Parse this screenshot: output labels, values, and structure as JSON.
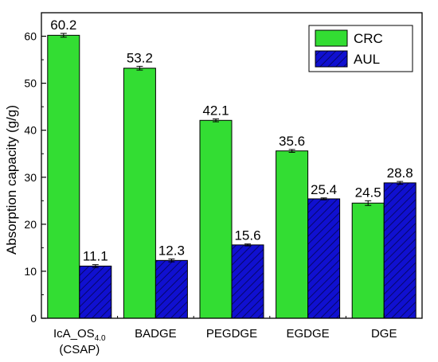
{
  "chart_data": {
    "type": "bar",
    "categories": [
      "IcA_OS4.0 (CSAP)",
      "BADGE",
      "PEGDGE",
      "EGDGE",
      "DGE"
    ],
    "category_labels": [
      {
        "main": "IcA_OS",
        "sub": "4.0",
        "line2": "(CSAP)"
      },
      {
        "main": "BADGE",
        "sub": "",
        "line2": ""
      },
      {
        "main": "PEGDGE",
        "sub": "",
        "line2": ""
      },
      {
        "main": "EGDGE",
        "sub": "",
        "line2": ""
      },
      {
        "main": "DGE",
        "sub": "",
        "line2": ""
      }
    ],
    "series": [
      {
        "name": "CRC",
        "values": [
          60.2,
          53.2,
          42.1,
          35.6,
          24.5
        ],
        "labels": [
          "60.2",
          "53.2",
          "42.1",
          "35.6",
          "24.5"
        ],
        "errors": [
          0.4,
          0.4,
          0.3,
          0.3,
          0.5
        ],
        "color": "#33dd33",
        "pattern": "solid"
      },
      {
        "name": "AUL",
        "values": [
          11.1,
          12.3,
          15.6,
          25.4,
          28.8
        ],
        "labels": [
          "11.1",
          "12.3",
          "15.6",
          "25.4",
          "28.8"
        ],
        "errors": [
          0.3,
          0.3,
          0.2,
          0.2,
          0.3
        ],
        "color": "#1010d0",
        "pattern": "diagonal-hatch"
      }
    ],
    "xlabel": "",
    "ylabel": "Absorption capacity (g/g)",
    "ylim": [
      0,
      65
    ],
    "yticks": [
      0,
      10,
      20,
      30,
      40,
      50,
      60
    ],
    "grid": false,
    "legend_position": "top-right"
  }
}
